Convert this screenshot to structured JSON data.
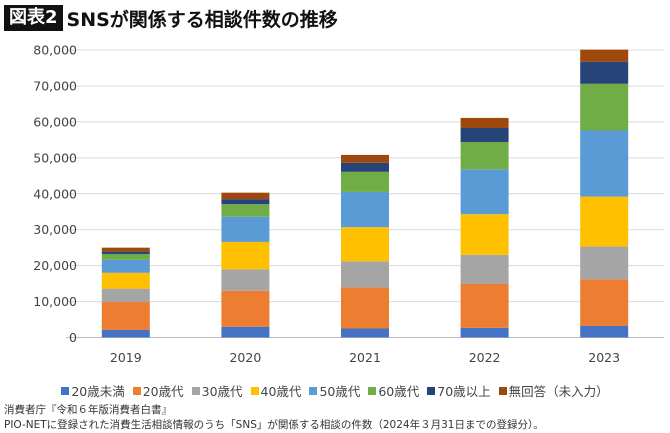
{
  "header": {
    "badge": "図表2",
    "title": "SNSが関係する相談件数の推移"
  },
  "chart_data": {
    "type": "bar",
    "stacked": true,
    "categories": [
      "2019",
      "2020",
      "2021",
      "2022",
      "2023"
    ],
    "ylim": [
      0,
      80000
    ],
    "yticks": [
      "0",
      "10,000",
      "20,000",
      "30,000",
      "40,000",
      "50,000",
      "60,000",
      "70,000",
      "80,000"
    ],
    "grid": true,
    "legend_position": "bottom",
    "series": [
      {
        "name": "20歳未満",
        "color": "#4472C4",
        "values": [
          2100,
          3000,
          2500,
          2700,
          3200
        ]
      },
      {
        "name": "20歳代",
        "color": "#ED7D31",
        "values": [
          7800,
          10000,
          11400,
          12200,
          13000
        ]
      },
      {
        "name": "30歳代",
        "color": "#A5A5A5",
        "values": [
          3700,
          6000,
          7300,
          8100,
          9100
        ]
      },
      {
        "name": "40歳代",
        "color": "#FFC000",
        "values": [
          4400,
          7600,
          9500,
          11300,
          13900
        ]
      },
      {
        "name": "50歳代",
        "color": "#5B9BD5",
        "values": [
          3600,
          7000,
          9800,
          12500,
          18400
        ]
      },
      {
        "name": "60歳代",
        "color": "#70AD47",
        "values": [
          1600,
          3500,
          5600,
          7600,
          13000
        ]
      },
      {
        "name": "70歳以上",
        "color": "#264478",
        "values": [
          700,
          1400,
          2500,
          3900,
          6100
        ]
      },
      {
        "name": "無回答（未入力）",
        "color": "#9E480E",
        "values": [
          1100,
          1800,
          2200,
          2800,
          3400
        ]
      }
    ]
  },
  "source": {
    "line1": "消費者庁『令和６年版消費者白書』",
    "line2": "PIO-NETに登録された消費生活相談情報のうち「SNS」が関係する相談の件数（2024年３月31日までの登録分）。"
  }
}
